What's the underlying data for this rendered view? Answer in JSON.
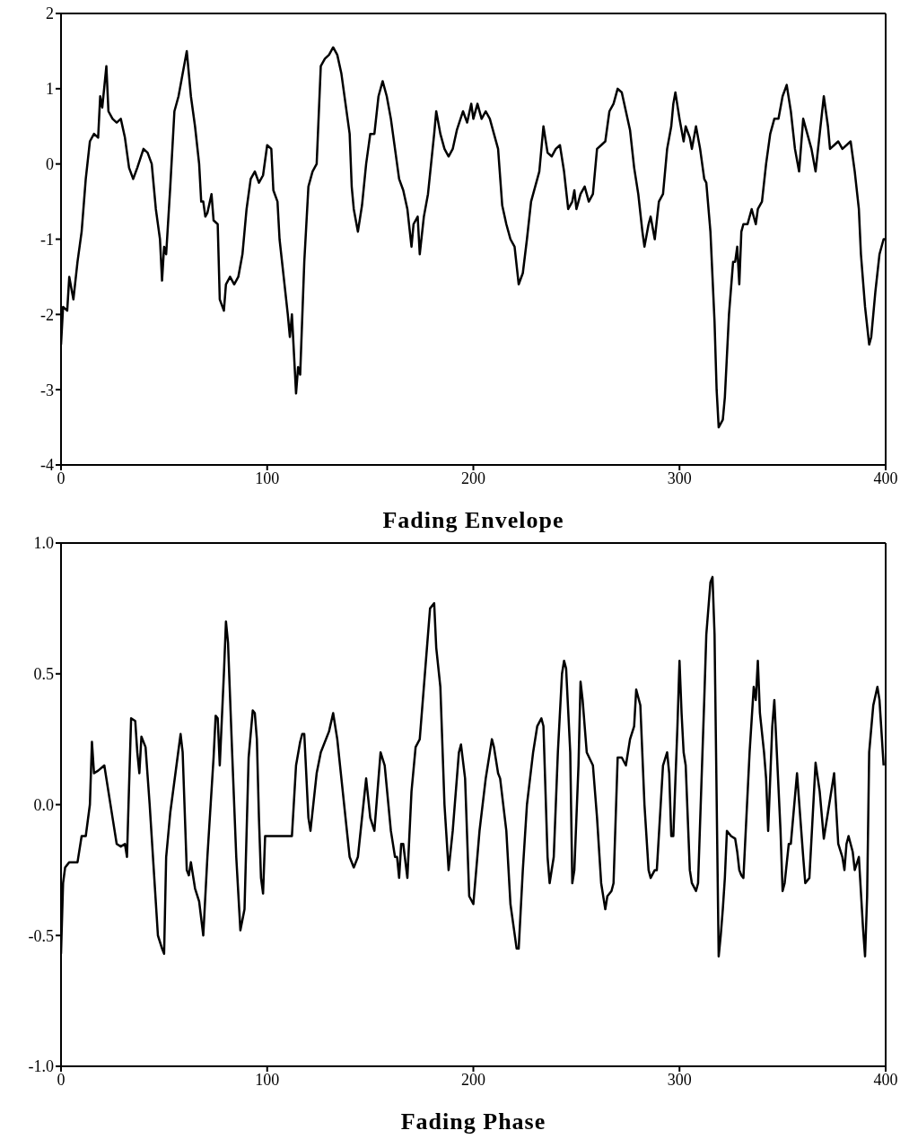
{
  "chart_data": [
    {
      "type": "line",
      "xlabel": "Fading Envelope",
      "xlim": [
        0,
        400
      ],
      "xticks": [
        0,
        100,
        200,
        300,
        400
      ],
      "ylim": [
        -4,
        2
      ],
      "yticks": [
        -4,
        -3,
        -2,
        -1,
        0,
        1,
        2
      ],
      "grid": false,
      "legend": false,
      "marker": "none",
      "line_style": "solid",
      "series": [
        {
          "color": "#000000",
          "x": [
            0,
            1,
            3,
            4,
            6,
            8,
            10,
            12,
            14,
            16,
            18,
            19,
            20,
            22,
            23,
            25,
            27,
            29,
            31,
            33,
            35,
            37,
            40,
            42,
            44,
            46,
            48,
            49,
            50,
            51,
            53,
            55,
            57,
            59,
            61,
            63,
            65,
            67,
            68,
            69,
            70,
            71,
            73,
            74,
            76,
            77,
            79,
            80,
            82,
            84,
            86,
            88,
            90,
            92,
            94,
            96,
            98,
            100,
            102,
            103,
            105,
            106,
            108,
            110,
            111,
            112,
            114,
            115,
            116,
            118,
            120,
            122,
            124,
            126,
            128,
            130,
            132,
            134,
            136,
            138,
            140,
            141,
            142,
            144,
            146,
            148,
            150,
            152,
            154,
            156,
            158,
            160,
            162,
            164,
            166,
            168,
            170,
            171,
            173,
            174,
            176,
            178,
            181,
            182,
            184,
            186,
            188,
            190,
            192,
            195,
            197,
            199,
            200,
            202,
            204,
            206,
            208,
            210,
            212,
            214,
            216,
            218,
            220,
            222,
            224,
            226,
            228,
            230,
            232,
            234,
            236,
            238,
            240,
            242,
            244,
            246,
            248,
            249,
            250,
            252,
            254,
            256,
            257,
            258,
            260,
            262,
            264,
            266,
            268,
            270,
            272,
            274,
            276,
            278,
            280,
            282,
            283,
            285,
            286,
            288,
            290,
            292,
            294,
            296,
            297,
            298,
            300,
            302,
            303,
            305,
            306,
            308,
            310,
            312,
            313,
            315,
            317,
            318,
            319,
            321,
            322,
            324,
            326,
            327,
            328,
            329,
            330,
            331,
            333,
            335,
            337,
            338,
            340,
            342,
            344,
            346,
            348,
            350,
            352,
            354,
            356,
            358,
            360,
            362,
            364,
            366,
            368,
            370,
            372,
            373,
            375,
            377,
            379,
            381,
            383,
            385,
            387,
            388,
            390,
            392,
            393,
            395,
            397,
            399,
            400
          ],
          "values": [
            -2.4,
            -1.9,
            -1.95,
            -1.5,
            -1.8,
            -1.3,
            -0.9,
            -0.2,
            0.3,
            0.4,
            0.35,
            0.9,
            0.75,
            1.3,
            0.7,
            0.6,
            0.55,
            0.6,
            0.35,
            -0.05,
            -0.2,
            -0.05,
            0.2,
            0.15,
            0.0,
            -0.6,
            -1.0,
            -1.55,
            -1.1,
            -1.2,
            -0.3,
            0.7,
            0.9,
            1.2,
            1.5,
            0.9,
            0.5,
            0.0,
            -0.5,
            -0.5,
            -0.7,
            -0.65,
            -0.4,
            -0.75,
            -0.8,
            -1.8,
            -1.95,
            -1.6,
            -1.5,
            -1.6,
            -1.5,
            -1.2,
            -0.6,
            -0.2,
            -0.1,
            -0.25,
            -0.15,
            0.25,
            0.2,
            -0.35,
            -0.5,
            -1.0,
            -1.5,
            -2.0,
            -2.3,
            -2.0,
            -3.05,
            -2.7,
            -2.8,
            -1.3,
            -0.3,
            -0.1,
            0.0,
            1.3,
            1.4,
            1.45,
            1.55,
            1.45,
            1.2,
            0.8,
            0.4,
            -0.3,
            -0.6,
            -0.9,
            -0.55,
            0.0,
            0.4,
            0.4,
            0.9,
            1.1,
            0.9,
            0.6,
            0.2,
            -0.2,
            -0.35,
            -0.6,
            -1.1,
            -0.8,
            -0.7,
            -1.2,
            -0.7,
            -0.4,
            0.4,
            0.7,
            0.4,
            0.2,
            0.1,
            0.2,
            0.45,
            0.7,
            0.55,
            0.8,
            0.6,
            0.8,
            0.6,
            0.7,
            0.6,
            0.4,
            0.2,
            -0.55,
            -0.8,
            -1.0,
            -1.1,
            -1.6,
            -1.45,
            -1.0,
            -0.5,
            -0.3,
            -0.1,
            0.5,
            0.15,
            0.1,
            0.2,
            0.25,
            -0.1,
            -0.6,
            -0.5,
            -0.35,
            -0.6,
            -0.4,
            -0.3,
            -0.5,
            -0.45,
            -0.4,
            0.2,
            0.25,
            0.3,
            0.7,
            0.8,
            1.0,
            0.95,
            0.7,
            0.45,
            -0.05,
            -0.4,
            -0.9,
            -1.1,
            -0.8,
            -0.7,
            -1.0,
            -0.5,
            -0.4,
            0.2,
            0.5,
            0.8,
            0.95,
            0.6,
            0.3,
            0.5,
            0.35,
            0.2,
            0.5,
            0.2,
            -0.2,
            -0.25,
            -0.9,
            -2.1,
            -3.0,
            -3.5,
            -3.4,
            -3.1,
            -2.0,
            -1.3,
            -1.3,
            -1.1,
            -1.6,
            -0.9,
            -0.8,
            -0.8,
            -0.6,
            -0.8,
            -0.6,
            -0.5,
            0.0,
            0.4,
            0.6,
            0.6,
            0.9,
            1.05,
            0.7,
            0.2,
            -0.1,
            0.6,
            0.4,
            0.2,
            -0.1,
            0.4,
            0.9,
            0.5,
            0.2,
            0.25,
            0.3,
            0.2,
            0.25,
            0.3,
            -0.1,
            -0.6,
            -1.2,
            -1.9,
            -2.4,
            -2.3,
            -1.7,
            -1.2,
            -1.0,
            -1.0
          ]
        }
      ]
    },
    {
      "type": "line",
      "xlabel": "Fading Phase",
      "xlim": [
        0,
        400
      ],
      "xticks": [
        0,
        100,
        200,
        300,
        400
      ],
      "ylim": [
        -1,
        1
      ],
      "yticks": [
        {
          "value": -1,
          "label": "-1.0"
        },
        -0.5,
        {
          "value": 0,
          "label": "0.0"
        },
        0.5,
        {
          "value": 1,
          "label": "1.0"
        }
      ],
      "grid": false,
      "legend": false,
      "marker": "none",
      "line_style": "solid",
      "series": [
        {
          "color": "#000000",
          "x": [
            0,
            1,
            2,
            4,
            8,
            10,
            12,
            14,
            15,
            16,
            18,
            21,
            25,
            27,
            29,
            31,
            32,
            33,
            34,
            36,
            37,
            38,
            39,
            41,
            43,
            45,
            47,
            49,
            50,
            51,
            53,
            56,
            58,
            59,
            61,
            62,
            63,
            65,
            67,
            69,
            71,
            74,
            75,
            76,
            77,
            79,
            80,
            81,
            83,
            85,
            87,
            89,
            91,
            93,
            94,
            95,
            96,
            97,
            98,
            99,
            104,
            112,
            114,
            116,
            117,
            118,
            120,
            121,
            124,
            126,
            130,
            132,
            134,
            138,
            140,
            142,
            144,
            148,
            150,
            152,
            155,
            157,
            160,
            162,
            163,
            164,
            165,
            166,
            168,
            170,
            172,
            174,
            177,
            179,
            181,
            182,
            184,
            186,
            188,
            190,
            193,
            194,
            196,
            198,
            200,
            203,
            206,
            209,
            210,
            212,
            213,
            216,
            218,
            221,
            222,
            224,
            226,
            229,
            231,
            233,
            234,
            236,
            237,
            239,
            241,
            243,
            244,
            245,
            247,
            248,
            249,
            251,
            252,
            253,
            255,
            258,
            260,
            262,
            264,
            265,
            267,
            268,
            270,
            272,
            274,
            276,
            278,
            279,
            281,
            283,
            285,
            286,
            288,
            289,
            292,
            294,
            295,
            296,
            297,
            299,
            300,
            301,
            302,
            303,
            305,
            306,
            308,
            309,
            312,
            313,
            315,
            316,
            317,
            319,
            320,
            321,
            322,
            323,
            325,
            327,
            328,
            329,
            330,
            331,
            334,
            336,
            337,
            338,
            339,
            341,
            342,
            343,
            344,
            345,
            346,
            349,
            350,
            351,
            353,
            354,
            357,
            360,
            361,
            363,
            366,
            368,
            370,
            375,
            377,
            379,
            380,
            381,
            382,
            384,
            385,
            387,
            389,
            390,
            391,
            392,
            394,
            396,
            397,
            399
          ],
          "values": [
            -0.57,
            -0.3,
            -0.24,
            -0.22,
            -0.22,
            -0.12,
            -0.12,
            0.0,
            0.24,
            0.12,
            0.13,
            0.15,
            -0.05,
            -0.15,
            -0.16,
            -0.15,
            -0.2,
            0.07,
            0.33,
            0.32,
            0.2,
            0.12,
            0.26,
            0.22,
            0.0,
            -0.25,
            -0.5,
            -0.55,
            -0.57,
            -0.2,
            -0.03,
            0.15,
            0.27,
            0.2,
            -0.25,
            -0.27,
            -0.22,
            -0.32,
            -0.37,
            -0.5,
            -0.2,
            0.18,
            0.34,
            0.33,
            0.15,
            0.5,
            0.7,
            0.62,
            0.2,
            -0.2,
            -0.48,
            -0.4,
            0.18,
            0.36,
            0.35,
            0.25,
            -0.05,
            -0.28,
            -0.34,
            -0.12,
            -0.12,
            -0.12,
            0.15,
            0.24,
            0.27,
            0.27,
            -0.05,
            -0.1,
            0.12,
            0.2,
            0.28,
            0.35,
            0.25,
            -0.05,
            -0.2,
            -0.24,
            -0.2,
            0.1,
            -0.05,
            -0.1,
            0.2,
            0.15,
            -0.1,
            -0.2,
            -0.2,
            -0.28,
            -0.15,
            -0.15,
            -0.28,
            0.05,
            0.22,
            0.25,
            0.55,
            0.75,
            0.77,
            0.6,
            0.45,
            0.0,
            -0.25,
            -0.1,
            0.2,
            0.23,
            0.1,
            -0.35,
            -0.38,
            -0.1,
            0.1,
            0.25,
            0.22,
            0.12,
            0.1,
            -0.1,
            -0.38,
            -0.55,
            -0.55,
            -0.25,
            0.0,
            0.2,
            0.3,
            0.33,
            0.3,
            -0.2,
            -0.3,
            -0.2,
            0.2,
            0.5,
            0.55,
            0.52,
            0.2,
            -0.3,
            -0.25,
            0.15,
            0.47,
            0.4,
            0.2,
            0.15,
            -0.05,
            -0.3,
            -0.4,
            -0.35,
            -0.33,
            -0.3,
            0.18,
            0.18,
            0.15,
            0.25,
            0.3,
            0.44,
            0.38,
            0.0,
            -0.25,
            -0.28,
            -0.25,
            -0.25,
            0.15,
            0.2,
            0.12,
            -0.12,
            -0.12,
            0.3,
            0.55,
            0.35,
            0.2,
            0.15,
            -0.25,
            -0.3,
            -0.33,
            -0.3,
            0.4,
            0.65,
            0.85,
            0.87,
            0.65,
            -0.58,
            -0.5,
            -0.4,
            -0.28,
            -0.1,
            -0.12,
            -0.13,
            -0.18,
            -0.25,
            -0.27,
            -0.28,
            0.2,
            0.45,
            0.4,
            0.55,
            0.35,
            0.2,
            0.1,
            -0.1,
            0.1,
            0.3,
            0.4,
            -0.1,
            -0.33,
            -0.3,
            -0.15,
            -0.15,
            0.12,
            -0.2,
            -0.3,
            -0.28,
            0.16,
            0.05,
            -0.13,
            0.12,
            -0.15,
            -0.2,
            -0.25,
            -0.15,
            -0.12,
            -0.18,
            -0.25,
            -0.2,
            -0.47,
            -0.58,
            -0.35,
            0.2,
            0.38,
            0.45,
            0.4,
            0.15
          ]
        }
      ]
    }
  ]
}
